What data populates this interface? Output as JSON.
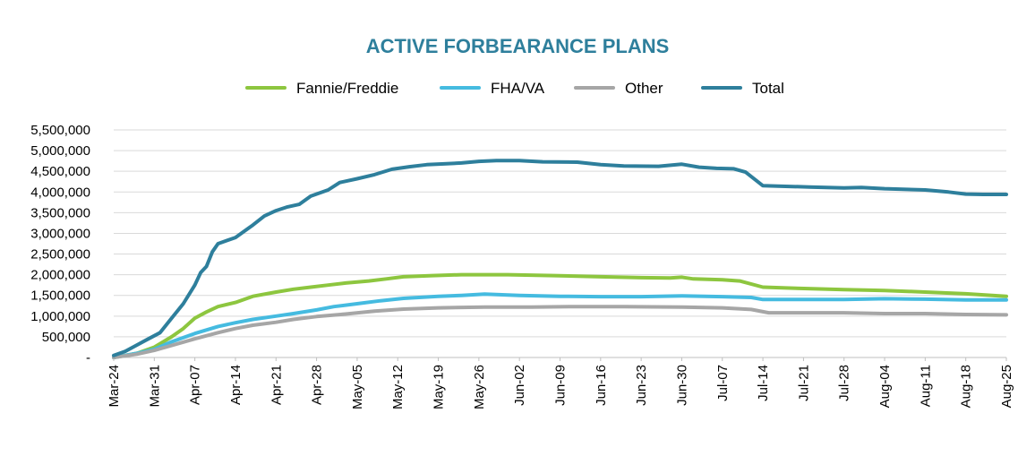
{
  "chart_data": {
    "type": "line",
    "title": "ACTIVE FORBEARANCE PLANS",
    "xlabel": "",
    "ylabel": "",
    "ylim": [
      0,
      5500000
    ],
    "y_ticks": [
      0,
      500000,
      1000000,
      1500000,
      2000000,
      2500000,
      3000000,
      3500000,
      4000000,
      4500000,
      5000000,
      5500000
    ],
    "y_tick_labels": [
      "-",
      "500,000",
      "1,000,000",
      "1,500,000",
      "2,000,000",
      "2,500,000",
      "3,000,000",
      "3,500,000",
      "4,000,000",
      "4,500,000",
      "5,000,000",
      "5,500,000"
    ],
    "x_tick_labels": [
      "Mar-24",
      "Mar-31",
      "Apr-07",
      "Apr-14",
      "Apr-21",
      "Apr-28",
      "May-05",
      "May-12",
      "May-19",
      "May-26",
      "Jun-02",
      "Jun-09",
      "Jun-16",
      "Jun-23",
      "Jun-30",
      "Jul-07",
      "Jul-14",
      "Jul-21",
      "Jul-28",
      "Aug-04",
      "Aug-11",
      "Aug-18",
      "Aug-25"
    ],
    "x_range_days": [
      0,
      154
    ],
    "grid": true,
    "legend_position": "top",
    "colors": {
      "fannie_freddie": "#8dc63f",
      "fha_va": "#45bbe0",
      "other": "#a6a6a6",
      "total": "#2e7f9c",
      "title": "#2e7f9c"
    },
    "series": [
      {
        "name": "Fannie/Freddie",
        "color_key": "fannie_freddie",
        "points": [
          [
            0,
            0
          ],
          [
            4,
            100000
          ],
          [
            7,
            250000
          ],
          [
            10,
            500000
          ],
          [
            12,
            700000
          ],
          [
            14,
            950000
          ],
          [
            16,
            1100000
          ],
          [
            18,
            1230000
          ],
          [
            21,
            1330000
          ],
          [
            24,
            1480000
          ],
          [
            28,
            1580000
          ],
          [
            31,
            1650000
          ],
          [
            34,
            1700000
          ],
          [
            37,
            1750000
          ],
          [
            40,
            1800000
          ],
          [
            44,
            1850000
          ],
          [
            47,
            1900000
          ],
          [
            50,
            1950000
          ],
          [
            55,
            1980000
          ],
          [
            60,
            2000000
          ],
          [
            68,
            2000000
          ],
          [
            76,
            1980000
          ],
          [
            84,
            1950000
          ],
          [
            91,
            1930000
          ],
          [
            96,
            1920000
          ],
          [
            98,
            1940000
          ],
          [
            100,
            1900000
          ],
          [
            105,
            1880000
          ],
          [
            108,
            1850000
          ],
          [
            112,
            1700000
          ],
          [
            116,
            1680000
          ],
          [
            126,
            1640000
          ],
          [
            133,
            1620000
          ],
          [
            140,
            1580000
          ],
          [
            147,
            1540000
          ],
          [
            154,
            1480000
          ]
        ]
      },
      {
        "name": "FHA/VA",
        "color_key": "fha_va",
        "points": [
          [
            0,
            0
          ],
          [
            4,
            100000
          ],
          [
            7,
            200000
          ],
          [
            10,
            380000
          ],
          [
            14,
            580000
          ],
          [
            18,
            750000
          ],
          [
            21,
            840000
          ],
          [
            24,
            920000
          ],
          [
            28,
            1000000
          ],
          [
            31,
            1060000
          ],
          [
            35,
            1150000
          ],
          [
            38,
            1230000
          ],
          [
            42,
            1300000
          ],
          [
            46,
            1370000
          ],
          [
            50,
            1430000
          ],
          [
            56,
            1480000
          ],
          [
            60,
            1500000
          ],
          [
            64,
            1530000
          ],
          [
            70,
            1500000
          ],
          [
            77,
            1480000
          ],
          [
            84,
            1470000
          ],
          [
            91,
            1470000
          ],
          [
            98,
            1490000
          ],
          [
            105,
            1470000
          ],
          [
            110,
            1450000
          ],
          [
            112,
            1400000
          ],
          [
            126,
            1400000
          ],
          [
            133,
            1420000
          ],
          [
            140,
            1410000
          ],
          [
            147,
            1390000
          ],
          [
            154,
            1390000
          ]
        ]
      },
      {
        "name": "Other",
        "color_key": "other",
        "points": [
          [
            0,
            0
          ],
          [
            4,
            80000
          ],
          [
            7,
            170000
          ],
          [
            10,
            290000
          ],
          [
            14,
            450000
          ],
          [
            18,
            600000
          ],
          [
            21,
            700000
          ],
          [
            24,
            780000
          ],
          [
            28,
            850000
          ],
          [
            31,
            920000
          ],
          [
            35,
            990000
          ],
          [
            40,
            1050000
          ],
          [
            45,
            1120000
          ],
          [
            50,
            1170000
          ],
          [
            56,
            1200000
          ],
          [
            64,
            1220000
          ],
          [
            72,
            1220000
          ],
          [
            80,
            1230000
          ],
          [
            88,
            1230000
          ],
          [
            98,
            1220000
          ],
          [
            105,
            1200000
          ],
          [
            110,
            1160000
          ],
          [
            113,
            1080000
          ],
          [
            126,
            1080000
          ],
          [
            133,
            1060000
          ],
          [
            140,
            1060000
          ],
          [
            147,
            1040000
          ],
          [
            154,
            1030000
          ]
        ]
      },
      {
        "name": "Total",
        "color_key": "total",
        "points": [
          [
            0,
            50000
          ],
          [
            2,
            150000
          ],
          [
            4,
            300000
          ],
          [
            6,
            450000
          ],
          [
            8,
            600000
          ],
          [
            10,
            950000
          ],
          [
            12,
            1300000
          ],
          [
            14,
            1750000
          ],
          [
            15,
            2050000
          ],
          [
            16,
            2200000
          ],
          [
            17,
            2550000
          ],
          [
            18,
            2750000
          ],
          [
            21,
            2900000
          ],
          [
            24,
            3200000
          ],
          [
            26,
            3420000
          ],
          [
            28,
            3550000
          ],
          [
            30,
            3640000
          ],
          [
            32,
            3700000
          ],
          [
            34,
            3900000
          ],
          [
            37,
            4050000
          ],
          [
            39,
            4230000
          ],
          [
            42,
            4320000
          ],
          [
            45,
            4420000
          ],
          [
            48,
            4550000
          ],
          [
            51,
            4610000
          ],
          [
            54,
            4660000
          ],
          [
            57,
            4680000
          ],
          [
            60,
            4700000
          ],
          [
            63,
            4740000
          ],
          [
            66,
            4760000
          ],
          [
            70,
            4760000
          ],
          [
            74,
            4730000
          ],
          [
            80,
            4720000
          ],
          [
            84,
            4660000
          ],
          [
            88,
            4630000
          ],
          [
            94,
            4620000
          ],
          [
            98,
            4670000
          ],
          [
            101,
            4600000
          ],
          [
            104,
            4570000
          ],
          [
            107,
            4560000
          ],
          [
            109,
            4480000
          ],
          [
            112,
            4150000
          ],
          [
            120,
            4120000
          ],
          [
            126,
            4100000
          ],
          [
            129,
            4110000
          ],
          [
            133,
            4080000
          ],
          [
            140,
            4050000
          ],
          [
            144,
            4000000
          ],
          [
            147,
            3950000
          ],
          [
            150,
            3940000
          ],
          [
            154,
            3940000
          ]
        ]
      }
    ]
  }
}
